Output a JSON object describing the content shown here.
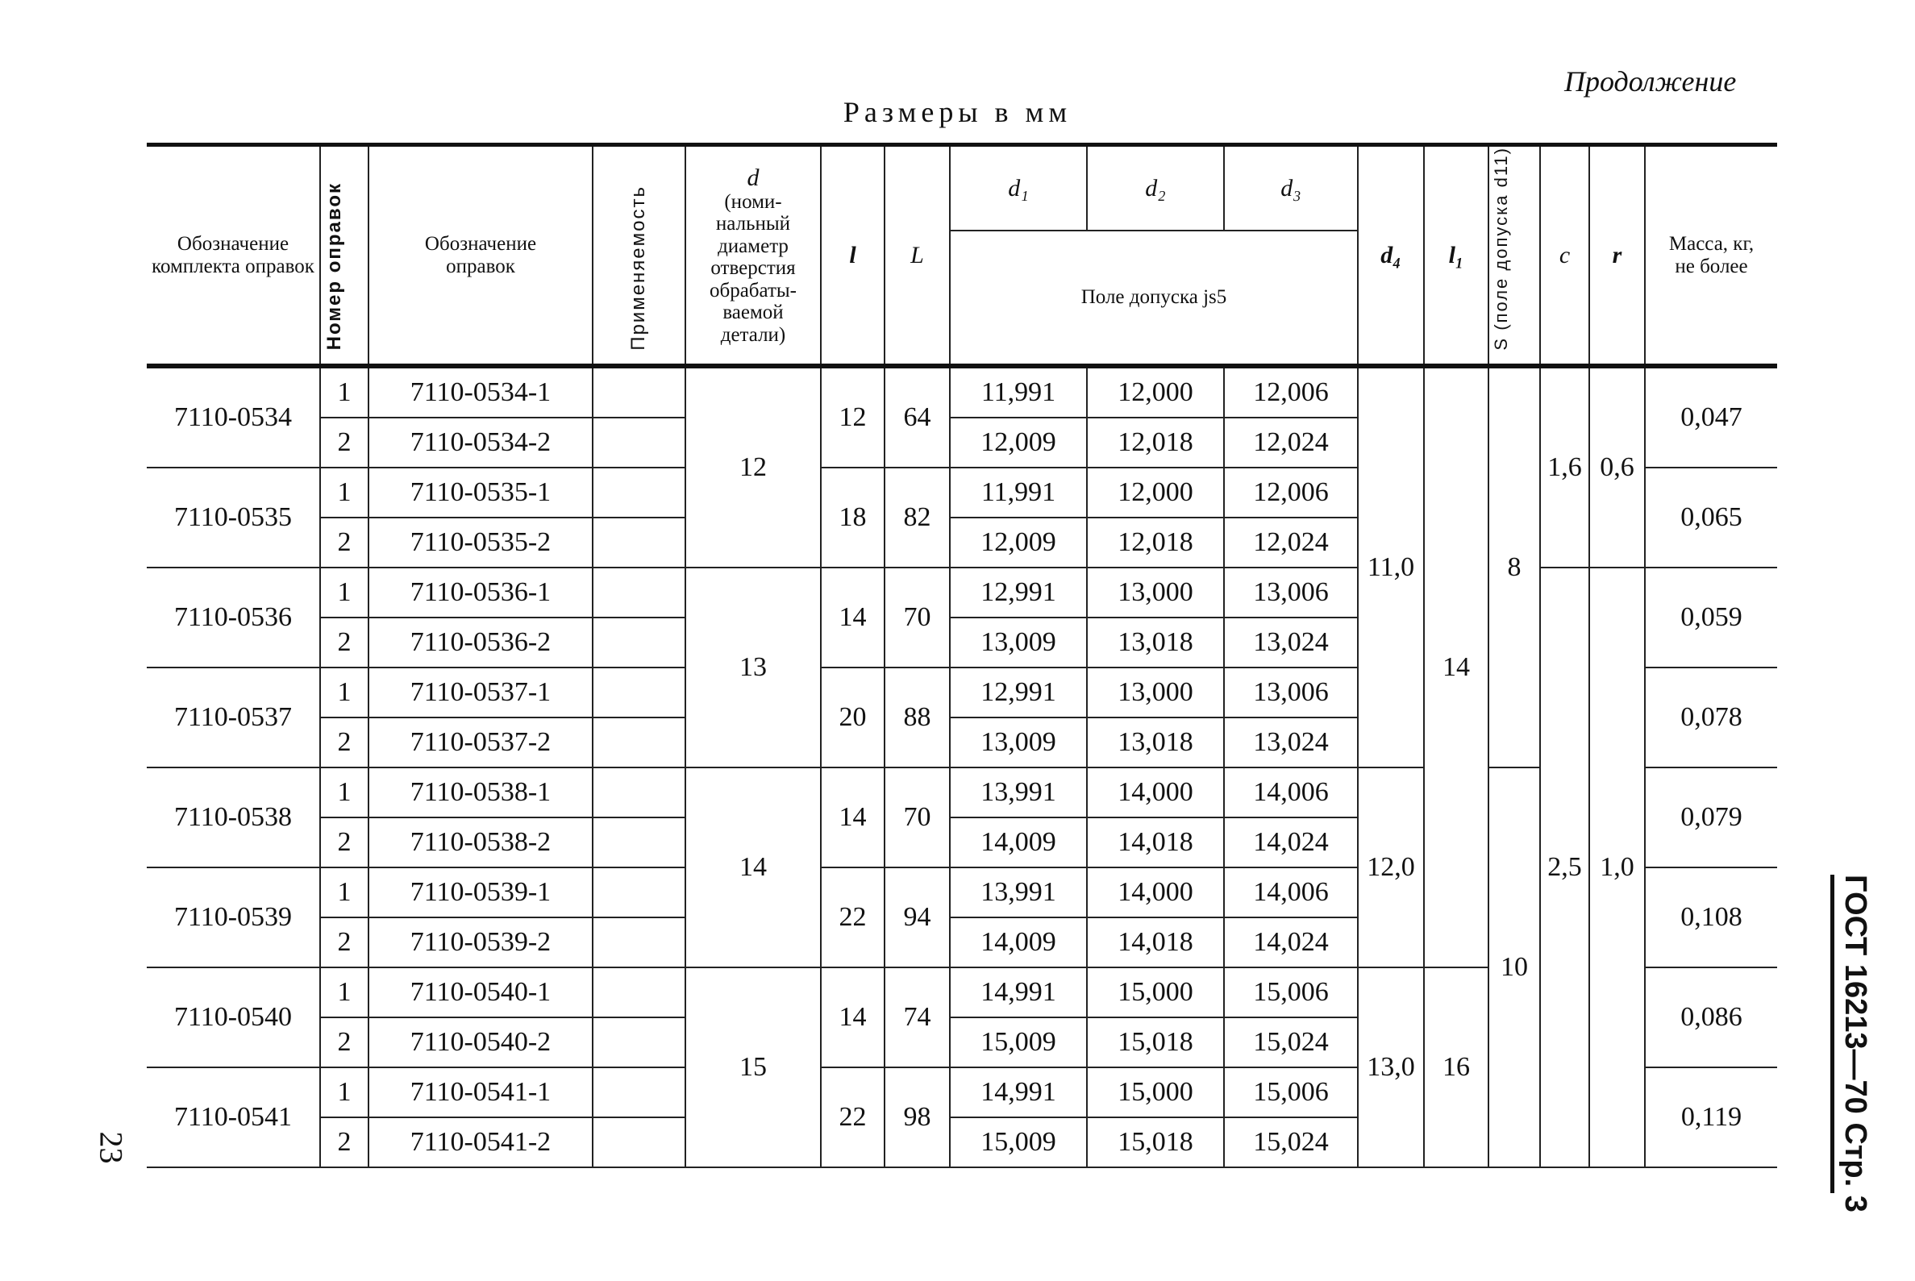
{
  "continuation": "Продолжение",
  "title": "Размеры в мм",
  "page_number": "23",
  "side_label": "ГОСТ 16213—70 Стр. 3",
  "headers": {
    "kit": "Обозначение комплекта оправок",
    "number": "Номер оправок",
    "designation": "Обозначение оправок",
    "applicability": "Применяемость",
    "d_symbol": "d",
    "d": "(номи-нальный диаметр отверстия обрабаты-ваемой детали)",
    "l": "l",
    "L": "L",
    "d1": "d₁",
    "d2": "d₂",
    "d3": "d₃",
    "tolerance": "Поле допуска js5",
    "d4": "d₄",
    "l1": "l₁",
    "S": "S (поле допуска d11)",
    "c": "c",
    "r": "r",
    "mass": "Масса, кг, не более"
  },
  "kits": [
    {
      "kit": "7110-0534",
      "l": "12",
      "L": "64",
      "mass": "0,047",
      "items": [
        {
          "num": "1",
          "designation": "7110-0534-1",
          "d1": "11,991",
          "d2": "12,000",
          "d3": "12,006"
        },
        {
          "num": "2",
          "designation": "7110-0534-2",
          "d1": "12,009",
          "d2": "12,018",
          "d3": "12,024"
        }
      ]
    },
    {
      "kit": "7110-0535",
      "l": "18",
      "L": "82",
      "mass": "0,065",
      "items": [
        {
          "num": "1",
          "designation": "7110-0535-1",
          "d1": "11,991",
          "d2": "12,000",
          "d3": "12,006"
        },
        {
          "num": "2",
          "designation": "7110-0535-2",
          "d1": "12,009",
          "d2": "12,018",
          "d3": "12,024"
        }
      ]
    },
    {
      "kit": "7110-0536",
      "l": "14",
      "L": "70",
      "mass": "0,059",
      "items": [
        {
          "num": "1",
          "designation": "7110-0536-1",
          "d1": "12,991",
          "d2": "13,000",
          "d3": "13,006"
        },
        {
          "num": "2",
          "designation": "7110-0536-2",
          "d1": "13,009",
          "d2": "13,018",
          "d3": "13,024"
        }
      ]
    },
    {
      "kit": "7110-0537",
      "l": "20",
      "L": "88",
      "mass": "0,078",
      "items": [
        {
          "num": "1",
          "designation": "7110-0537-1",
          "d1": "12,991",
          "d2": "13,000",
          "d3": "13,006"
        },
        {
          "num": "2",
          "designation": "7110-0537-2",
          "d1": "13,009",
          "d2": "13,018",
          "d3": "13,024"
        }
      ]
    },
    {
      "kit": "7110-0538",
      "l": "14",
      "L": "70",
      "mass": "0,079",
      "items": [
        {
          "num": "1",
          "designation": "7110-0538-1",
          "d1": "13,991",
          "d2": "14,000",
          "d3": "14,006"
        },
        {
          "num": "2",
          "designation": "7110-0538-2",
          "d1": "14,009",
          "d2": "14,018",
          "d3": "14,024"
        }
      ]
    },
    {
      "kit": "7110-0539",
      "l": "22",
      "L": "94",
      "mass": "0,108",
      "items": [
        {
          "num": "1",
          "designation": "7110-0539-1",
          "d1": "13,991",
          "d2": "14,000",
          "d3": "14,006"
        },
        {
          "num": "2",
          "designation": "7110-0539-2",
          "d1": "14,009",
          "d2": "14,018",
          "d3": "14,024"
        }
      ]
    },
    {
      "kit": "7110-0540",
      "l": "14",
      "L": "74",
      "mass": "0,086",
      "items": [
        {
          "num": "1",
          "designation": "7110-0540-1",
          "d1": "14,991",
          "d2": "15,000",
          "d3": "15,006"
        },
        {
          "num": "2",
          "designation": "7110-0540-2",
          "d1": "15,009",
          "d2": "15,018",
          "d3": "15,024"
        }
      ]
    },
    {
      "kit": "7110-0541",
      "l": "22",
      "L": "98",
      "mass": "0,119",
      "items": [
        {
          "num": "1",
          "designation": "7110-0541-1",
          "d1": "14,991",
          "d2": "15,000",
          "d3": "15,006"
        },
        {
          "num": "2",
          "designation": "7110-0541-2",
          "d1": "15,009",
          "d2": "15,018",
          "d3": "15,024"
        }
      ]
    }
  ],
  "groups": {
    "d": [
      {
        "value": "12",
        "rows": 4
      },
      {
        "value": "13",
        "rows": 4
      },
      {
        "value": "14",
        "rows": 4
      },
      {
        "value": "15",
        "rows": 4
      }
    ],
    "d4": [
      {
        "value": "11,0",
        "rows": 8
      },
      {
        "value": "12,0",
        "rows": 4
      },
      {
        "value": "13,0",
        "rows": 4
      }
    ],
    "l1": [
      {
        "value": "14",
        "rows": 12
      },
      {
        "value": "16",
        "rows": 4
      }
    ],
    "S": [
      {
        "value": "8",
        "rows": 8
      },
      {
        "value": "10",
        "rows": 8
      }
    ],
    "c": [
      {
        "value": "1,6",
        "rows": 4
      },
      {
        "value": "2,5",
        "rows": 12
      }
    ],
    "r": [
      {
        "value": "0,6",
        "rows": 4
      },
      {
        "value": "1,0",
        "rows": 12
      }
    ]
  }
}
